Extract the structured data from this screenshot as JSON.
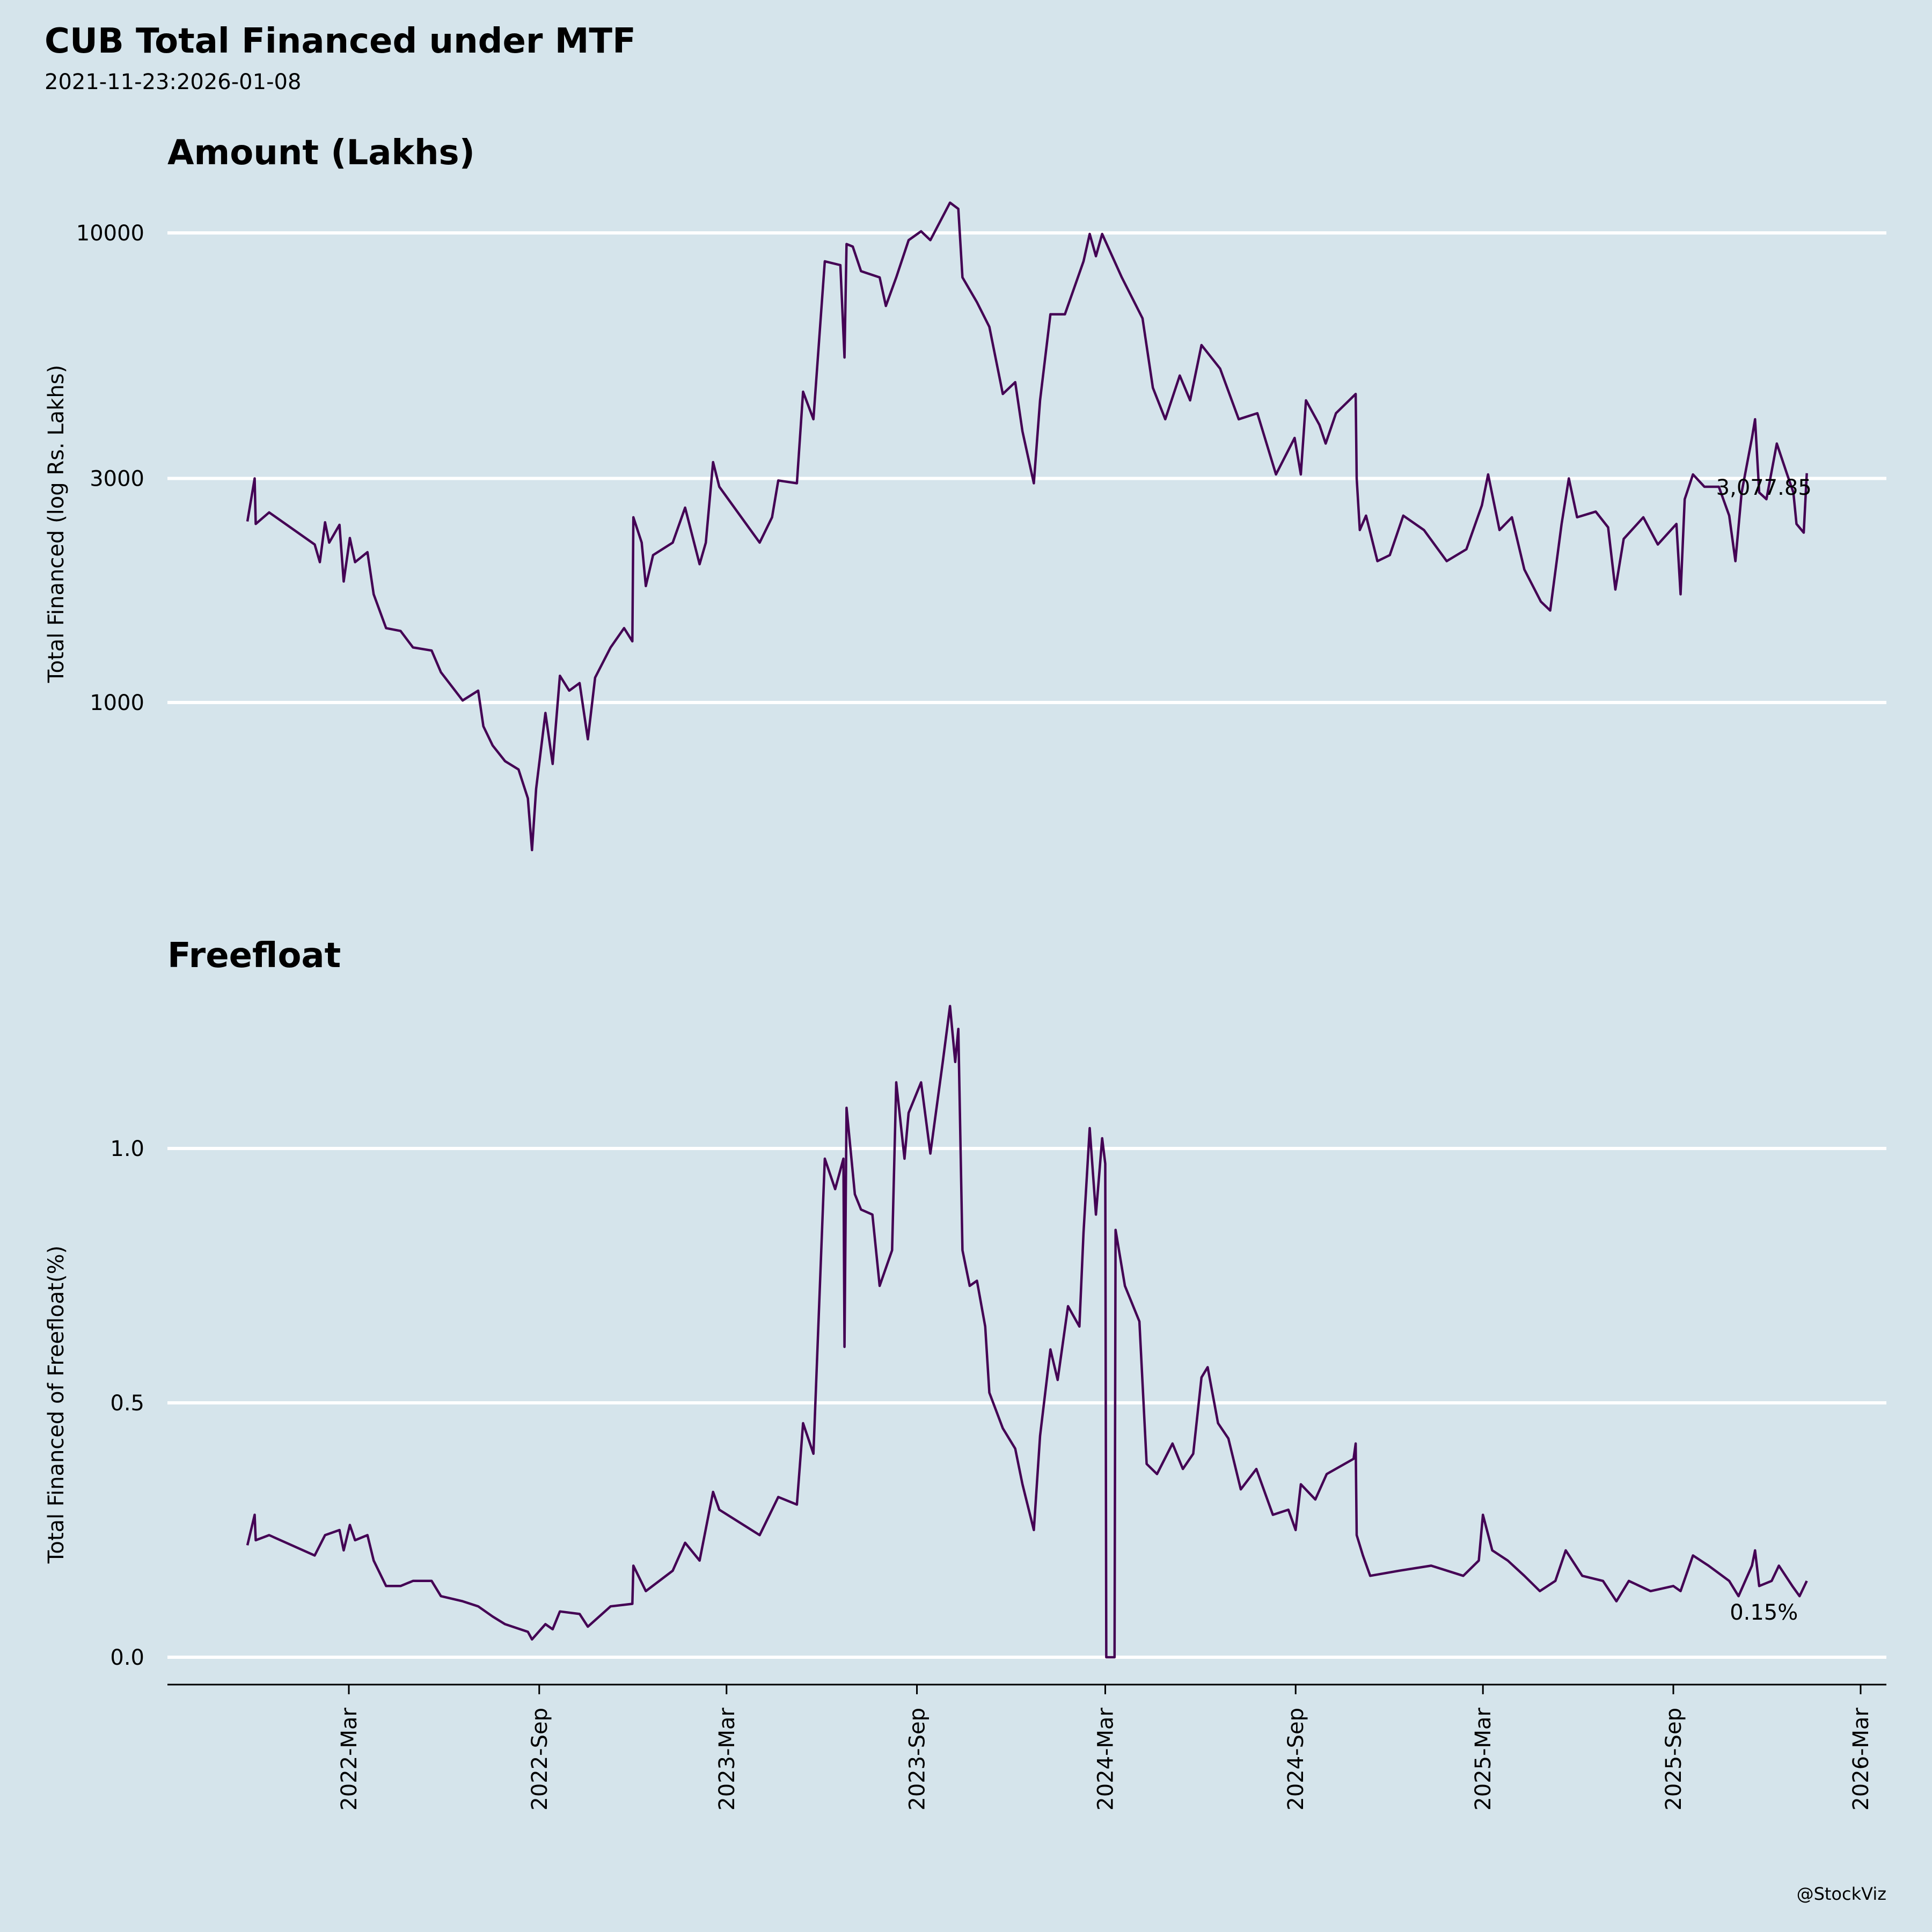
{
  "title": "CUB Total Financed under MTF",
  "subtitle": "2021-11-23:2026-01-08",
  "watermark": "@StockViz",
  "colors": {
    "background": "#d5e4eb",
    "line": "#440154",
    "grid": "#ffffff"
  },
  "chart_data": [
    {
      "type": "line",
      "title": "Amount (Lakhs)",
      "ylabel": "Total Financed (log Rs. Lakhs)",
      "yscale": "log",
      "ylim": [
        420,
        12500
      ],
      "yticks": [
        1000,
        3000,
        10000
      ],
      "ytick_labels": [
        "1000",
        "3000",
        "10000"
      ],
      "grid": true,
      "last_label": "3,077.85",
      "points": [
        [
          "2021-11-23",
          2430
        ],
        [
          "2021-11-30",
          3000
        ],
        [
          "2021-12-01",
          2400
        ],
        [
          "2021-12-14",
          2540
        ],
        [
          "2022-01-27",
          2170
        ],
        [
          "2022-02-01",
          1990
        ],
        [
          "2022-02-06",
          2420
        ],
        [
          "2022-02-10",
          2190
        ],
        [
          "2022-02-20",
          2390
        ],
        [
          "2022-02-24",
          1810
        ],
        [
          "2022-03-02",
          2240
        ],
        [
          "2022-03-07",
          1990
        ],
        [
          "2022-03-19",
          2090
        ],
        [
          "2022-03-25",
          1700
        ],
        [
          "2022-04-06",
          1440
        ],
        [
          "2022-04-20",
          1420
        ],
        [
          "2022-05-02",
          1310
        ],
        [
          "2022-05-20",
          1290
        ],
        [
          "2022-05-29",
          1160
        ],
        [
          "2022-06-19",
          1010
        ],
        [
          "2022-07-04",
          1060
        ],
        [
          "2022-07-09",
          890
        ],
        [
          "2022-07-18",
          810
        ],
        [
          "2022-07-30",
          750
        ],
        [
          "2022-08-12",
          720
        ],
        [
          "2022-08-21",
          625
        ],
        [
          "2022-08-25",
          485
        ],
        [
          "2022-08-29",
          655
        ],
        [
          "2022-09-07",
          950
        ],
        [
          "2022-09-14",
          740
        ],
        [
          "2022-09-21",
          1140
        ],
        [
          "2022-09-30",
          1060
        ],
        [
          "2022-10-10",
          1100
        ],
        [
          "2022-10-18",
          835
        ],
        [
          "2022-10-25",
          1130
        ],
        [
          "2022-11-09",
          1310
        ],
        [
          "2022-11-22",
          1440
        ],
        [
          "2022-11-30",
          1350
        ],
        [
          "2022-12-01",
          2480
        ],
        [
          "2022-12-09",
          2190
        ],
        [
          "2022-12-13",
          1770
        ],
        [
          "2022-12-20",
          2060
        ],
        [
          "2023-01-08",
          2190
        ],
        [
          "2023-01-20",
          2600
        ],
        [
          "2023-02-03",
          1970
        ],
        [
          "2023-02-09",
          2190
        ],
        [
          "2023-02-16",
          3250
        ],
        [
          "2023-02-22",
          2880
        ],
        [
          "2023-04-02",
          2190
        ],
        [
          "2023-04-14",
          2480
        ],
        [
          "2023-04-20",
          2970
        ],
        [
          "2023-05-08",
          2930
        ],
        [
          "2023-05-14",
          4590
        ],
        [
          "2023-05-24",
          4010
        ],
        [
          "2023-06-04",
          8700
        ],
        [
          "2023-06-19",
          8540
        ],
        [
          "2023-06-23",
          5430
        ],
        [
          "2023-06-25",
          9470
        ],
        [
          "2023-07-01",
          9350
        ],
        [
          "2023-07-09",
          8290
        ],
        [
          "2023-07-27",
          8040
        ],
        [
          "2023-08-02",
          6990
        ],
        [
          "2023-08-12",
          8040
        ],
        [
          "2023-08-24",
          9650
        ],
        [
          "2023-09-05",
          10080
        ],
        [
          "2023-09-14",
          9650
        ],
        [
          "2023-10-03",
          11600
        ],
        [
          "2023-10-11",
          11250
        ],
        [
          "2023-10-15",
          8040
        ],
        [
          "2023-10-29",
          7120
        ],
        [
          "2023-11-10",
          6310
        ],
        [
          "2023-11-23",
          4540
        ],
        [
          "2023-12-05",
          4810
        ],
        [
          "2023-12-12",
          3780
        ],
        [
          "2023-12-23",
          2930
        ],
        [
          "2023-12-29",
          4400
        ],
        [
          "2024-01-08",
          6710
        ],
        [
          "2024-01-22",
          6710
        ],
        [
          "2024-02-09",
          8700
        ],
        [
          "2024-02-15",
          9950
        ],
        [
          "2024-02-21",
          8920
        ],
        [
          "2024-02-27",
          9950
        ],
        [
          "2024-03-17",
          8040
        ],
        [
          "2024-04-06",
          6580
        ],
        [
          "2024-04-16",
          4680
        ],
        [
          "2024-04-28",
          4010
        ],
        [
          "2024-05-12",
          4970
        ],
        [
          "2024-05-22",
          4400
        ],
        [
          "2024-06-02",
          5770
        ],
        [
          "2024-06-20",
          5140
        ],
        [
          "2024-07-08",
          4010
        ],
        [
          "2024-07-26",
          4130
        ],
        [
          "2024-08-13",
          3060
        ],
        [
          "2024-08-31",
          3660
        ],
        [
          "2024-09-06",
          3060
        ],
        [
          "2024-09-11",
          4400
        ],
        [
          "2024-09-24",
          3900
        ],
        [
          "2024-09-30",
          3560
        ],
        [
          "2024-10-10",
          4130
        ],
        [
          "2024-10-29",
          4540
        ],
        [
          "2024-10-30",
          3000
        ],
        [
          "2024-11-02",
          2330
        ],
        [
          "2024-11-08",
          2500
        ],
        [
          "2024-11-19",
          2000
        ],
        [
          "2024-12-01",
          2060
        ],
        [
          "2024-12-14",
          2500
        ],
        [
          "2025-01-03",
          2330
        ],
        [
          "2025-01-25",
          2000
        ],
        [
          "2025-02-13",
          2120
        ],
        [
          "2025-02-28",
          2630
        ],
        [
          "2025-03-06",
          3060
        ],
        [
          "2025-03-17",
          2330
        ],
        [
          "2025-03-29",
          2480
        ],
        [
          "2025-04-10",
          1920
        ],
        [
          "2025-04-26",
          1640
        ],
        [
          "2025-05-05",
          1570
        ],
        [
          "2025-05-16",
          2400
        ],
        [
          "2025-05-23",
          3000
        ],
        [
          "2025-05-31",
          2480
        ],
        [
          "2025-06-18",
          2550
        ],
        [
          "2025-06-30",
          2360
        ],
        [
          "2025-07-07",
          1740
        ],
        [
          "2025-07-15",
          2230
        ],
        [
          "2025-08-03",
          2480
        ],
        [
          "2025-08-17",
          2170
        ],
        [
          "2025-09-04",
          2400
        ],
        [
          "2025-09-08",
          1700
        ],
        [
          "2025-09-12",
          2710
        ],
        [
          "2025-09-20",
          3060
        ],
        [
          "2025-10-01",
          2880
        ],
        [
          "2025-10-15",
          2880
        ],
        [
          "2025-10-25",
          2500
        ],
        [
          "2025-10-31",
          2000
        ],
        [
          "2025-11-06",
          2800
        ],
        [
          "2025-11-16",
          3660
        ],
        [
          "2025-11-19",
          4010
        ],
        [
          "2025-11-23",
          2800
        ],
        [
          "2025-11-30",
          2710
        ],
        [
          "2025-12-10",
          3560
        ],
        [
          "2025-12-20",
          3060
        ],
        [
          "2025-12-26",
          2800
        ],
        [
          "2025-12-29",
          2400
        ],
        [
          "2026-01-05",
          2300
        ],
        [
          "2026-01-08",
          3077.85
        ]
      ]
    },
    {
      "type": "line",
      "title": "Freefloat",
      "ylabel": "Total Financed of Freefloat(%)",
      "ylim": [
        -0.05,
        1.33
      ],
      "yticks": [
        0,
        0.5,
        1.0
      ],
      "ytick_labels": [
        "0.0",
        "0.5",
        "1.0"
      ],
      "grid": true,
      "last_label": "0.15%",
      "points": [
        [
          "2021-11-23",
          0.22
        ],
        [
          "2021-11-30",
          0.28
        ],
        [
          "2021-12-01",
          0.23
        ],
        [
          "2021-12-14",
          0.24
        ],
        [
          "2022-01-27",
          0.2
        ],
        [
          "2022-02-06",
          0.24
        ],
        [
          "2022-02-20",
          0.25
        ],
        [
          "2022-02-24",
          0.21
        ],
        [
          "2022-03-02",
          0.26
        ],
        [
          "2022-03-07",
          0.23
        ],
        [
          "2022-03-19",
          0.24
        ],
        [
          "2022-03-25",
          0.19
        ],
        [
          "2022-04-06",
          0.14
        ],
        [
          "2022-04-20",
          0.14
        ],
        [
          "2022-05-02",
          0.15
        ],
        [
          "2022-05-20",
          0.15
        ],
        [
          "2022-05-29",
          0.12
        ],
        [
          "2022-06-19",
          0.11
        ],
        [
          "2022-07-04",
          0.1
        ],
        [
          "2022-07-18",
          0.08
        ],
        [
          "2022-07-30",
          0.065
        ],
        [
          "2022-08-21",
          0.05
        ],
        [
          "2022-08-25",
          0.035
        ],
        [
          "2022-09-07",
          0.065
        ],
        [
          "2022-09-14",
          0.055
        ],
        [
          "2022-09-21",
          0.09
        ],
        [
          "2022-10-10",
          0.085
        ],
        [
          "2022-10-18",
          0.06
        ],
        [
          "2022-11-09",
          0.1
        ],
        [
          "2022-11-30",
          0.105
        ],
        [
          "2022-12-01",
          0.18
        ],
        [
          "2022-12-13",
          0.13
        ],
        [
          "2023-01-08",
          0.17
        ],
        [
          "2023-01-20",
          0.225
        ],
        [
          "2023-02-03",
          0.19
        ],
        [
          "2023-02-16",
          0.325
        ],
        [
          "2023-02-22",
          0.29
        ],
        [
          "2023-04-02",
          0.24
        ],
        [
          "2023-04-20",
          0.315
        ],
        [
          "2023-05-08",
          0.3
        ],
        [
          "2023-05-14",
          0.46
        ],
        [
          "2023-05-24",
          0.4
        ],
        [
          "2023-06-04",
          0.98
        ],
        [
          "2023-06-14",
          0.92
        ],
        [
          "2023-06-22",
          0.98
        ],
        [
          "2023-06-23",
          0.61
        ],
        [
          "2023-06-25",
          1.08
        ],
        [
          "2023-07-03",
          0.91
        ],
        [
          "2023-07-09",
          0.88
        ],
        [
          "2023-07-20",
          0.87
        ],
        [
          "2023-07-27",
          0.73
        ],
        [
          "2023-08-08",
          0.8
        ],
        [
          "2023-08-12",
          1.13
        ],
        [
          "2023-08-20",
          0.98
        ],
        [
          "2023-08-24",
          1.07
        ],
        [
          "2023-09-05",
          1.13
        ],
        [
          "2023-09-14",
          0.99
        ],
        [
          "2023-09-26",
          1.17
        ],
        [
          "2023-10-03",
          1.28
        ],
        [
          "2023-10-08",
          1.17
        ],
        [
          "2023-10-11",
          1.235
        ],
        [
          "2023-10-15",
          0.8
        ],
        [
          "2023-10-22",
          0.73
        ],
        [
          "2023-10-29",
          0.74
        ],
        [
          "2023-11-06",
          0.65
        ],
        [
          "2023-11-10",
          0.52
        ],
        [
          "2023-11-23",
          0.45
        ],
        [
          "2023-12-05",
          0.41
        ],
        [
          "2023-12-12",
          0.34
        ],
        [
          "2023-12-23",
          0.25
        ],
        [
          "2023-12-29",
          0.435
        ],
        [
          "2024-01-08",
          0.605
        ],
        [
          "2024-01-15",
          0.545
        ],
        [
          "2024-01-25",
          0.69
        ],
        [
          "2024-02-05",
          0.65
        ],
        [
          "2024-02-09",
          0.835
        ],
        [
          "2024-02-15",
          1.04
        ],
        [
          "2024-02-21",
          0.87
        ],
        [
          "2024-02-27",
          1.02
        ],
        [
          "2024-03-01",
          0.97
        ],
        [
          "2024-03-02",
          0.0
        ],
        [
          "2024-03-10",
          0.0
        ],
        [
          "2024-03-11",
          0.84
        ],
        [
          "2024-03-20",
          0.73
        ],
        [
          "2024-04-03",
          0.66
        ],
        [
          "2024-04-10",
          0.38
        ],
        [
          "2024-04-20",
          0.36
        ],
        [
          "2024-05-05",
          0.42
        ],
        [
          "2024-05-15",
          0.37
        ],
        [
          "2024-05-25",
          0.4
        ],
        [
          "2024-06-02",
          0.55
        ],
        [
          "2024-06-08",
          0.57
        ],
        [
          "2024-06-18",
          0.46
        ],
        [
          "2024-06-28",
          0.43
        ],
        [
          "2024-07-10",
          0.33
        ],
        [
          "2024-07-25",
          0.37
        ],
        [
          "2024-08-10",
          0.28
        ],
        [
          "2024-08-25",
          0.29
        ],
        [
          "2024-09-01",
          0.25
        ],
        [
          "2024-09-06",
          0.34
        ],
        [
          "2024-09-20",
          0.31
        ],
        [
          "2024-10-01",
          0.36
        ],
        [
          "2024-10-27",
          0.39
        ],
        [
          "2024-10-29",
          0.42
        ],
        [
          "2024-10-30",
          0.24
        ],
        [
          "2024-11-05",
          0.2
        ],
        [
          "2024-11-12",
          0.16
        ],
        [
          "2024-12-10",
          0.17
        ],
        [
          "2025-01-10",
          0.18
        ],
        [
          "2025-02-10",
          0.16
        ],
        [
          "2025-02-25",
          0.19
        ],
        [
          "2025-03-01",
          0.28
        ],
        [
          "2025-03-10",
          0.21
        ],
        [
          "2025-03-25",
          0.19
        ],
        [
          "2025-04-10",
          0.16
        ],
        [
          "2025-04-25",
          0.13
        ],
        [
          "2025-05-10",
          0.15
        ],
        [
          "2025-05-20",
          0.21
        ],
        [
          "2025-06-05",
          0.16
        ],
        [
          "2025-06-25",
          0.15
        ],
        [
          "2025-07-08",
          0.11
        ],
        [
          "2025-07-20",
          0.15
        ],
        [
          "2025-08-10",
          0.13
        ],
        [
          "2025-09-01",
          0.14
        ],
        [
          "2025-09-08",
          0.13
        ],
        [
          "2025-09-20",
          0.2
        ],
        [
          "2025-10-05",
          0.18
        ],
        [
          "2025-10-25",
          0.15
        ],
        [
          "2025-11-03",
          0.12
        ],
        [
          "2025-11-16",
          0.18
        ],
        [
          "2025-11-19",
          0.21
        ],
        [
          "2025-11-23",
          0.14
        ],
        [
          "2025-12-05",
          0.15
        ],
        [
          "2025-12-12",
          0.18
        ],
        [
          "2025-12-25",
          0.14
        ],
        [
          "2026-01-01",
          0.12
        ],
        [
          "2026-01-08",
          0.15
        ]
      ]
    }
  ],
  "xaxis": {
    "ticks": [
      "2022-03-01",
      "2022-09-01",
      "2023-03-01",
      "2023-09-01",
      "2024-03-01",
      "2024-09-01",
      "2025-03-01",
      "2025-09-01",
      "2026-03-01"
    ],
    "tick_labels": [
      "2022-Mar",
      "2022-Sep",
      "2023-Mar",
      "2023-Sep",
      "2024-Mar",
      "2024-Sep",
      "2025-Mar",
      "2025-Sep",
      "2026-Mar"
    ]
  }
}
